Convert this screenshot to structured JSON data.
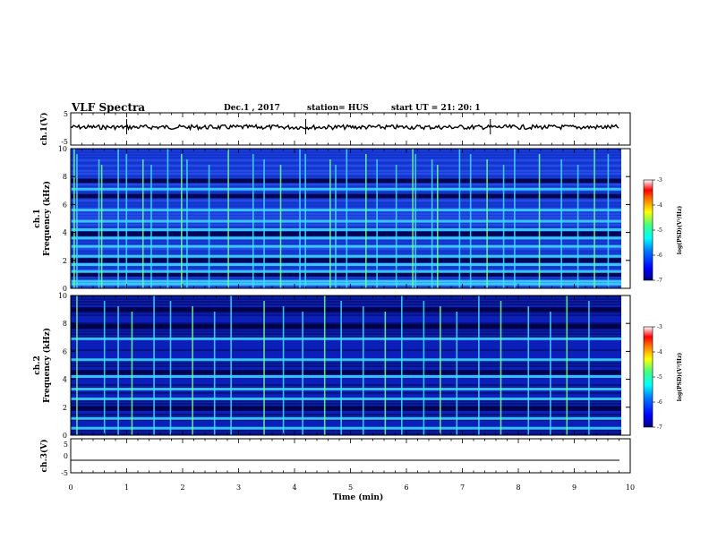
{
  "header": {
    "title": "VLF Spectra",
    "date": "Dec.1  , 2017",
    "station": "station= HUS",
    "start": "start  UT =   21: 20: 1"
  },
  "colors": {
    "colormap": [
      "#000080",
      "#0000ff",
      "#0080ff",
      "#00ffff",
      "#40ff80",
      "#ffff00",
      "#ff8000",
      "#ff0000",
      "#ffffff"
    ],
    "trace": "#000000",
    "axis": "#000000"
  },
  "chart_data": [
    {
      "type": "line",
      "panel": "ch1-waveform",
      "ylabel": "ch.1(V)",
      "ylim": [
        -5,
        5
      ],
      "yticks": [
        "5",
        "-5"
      ],
      "xlim": [
        0,
        10
      ],
      "note_values": {
        "baseline": 0,
        "spikes_at_min": [
          1.0,
          4.2,
          7.5
        ]
      }
    },
    {
      "type": "heatmap",
      "panel": "ch1-spectrogram",
      "ylabel": "ch.1\nFrequency (kHz)",
      "ylim": [
        0,
        10
      ],
      "yticks": [
        "0",
        "2",
        "4",
        "6",
        "8",
        "10"
      ],
      "xlim": [
        0,
        10
      ],
      "colorbar": {
        "label": "log(PSD)(V²/Hz)",
        "range": [
          -7,
          -3
        ],
        "ticks": [
          "-3",
          "-4",
          "-5",
          "-6",
          "-7"
        ]
      },
      "bright_bands_khz": [
        0.3,
        0.5,
        1.2,
        1.7,
        2.3,
        3.0,
        3.6,
        4.2,
        4.8,
        5.6,
        7.1
      ],
      "dark_bands_khz": [
        1.0,
        2.0,
        3.9,
        6.6,
        7.7
      ],
      "spike_times_min": [
        0.05,
        0.1,
        0.5,
        0.55,
        0.85,
        1.0,
        1.3,
        1.45,
        1.75,
        2.0,
        2.1,
        2.5,
        2.85,
        3.3,
        3.5,
        3.8,
        4.15,
        4.25,
        4.7,
        4.8,
        5.0,
        5.35,
        5.55,
        5.9,
        6.2,
        6.25,
        6.55,
        6.65,
        7.05,
        7.25,
        7.55,
        7.85,
        8.05,
        8.5,
        8.9,
        9.2,
        9.5,
        9.75
      ]
    },
    {
      "type": "heatmap",
      "panel": "ch2-spectrogram",
      "ylabel": "ch.2\nFrequency (kHz)",
      "ylim": [
        0,
        10
      ],
      "yticks": [
        "0",
        "2",
        "4",
        "6",
        "8",
        "10"
      ],
      "xlim": [
        0,
        10
      ],
      "colorbar": {
        "label": "log(PSD)(V²/Hz)",
        "range": [
          -7,
          -3
        ],
        "ticks": [
          "-3",
          "-4",
          "-5",
          "-6",
          "-7"
        ]
      },
      "bright_bands_khz": [
        0.5,
        1.2,
        2.6,
        3.3,
        4.2,
        5.4,
        6.9
      ],
      "dark_bands_khz": [
        1.9,
        4.5,
        7.8,
        9.0
      ],
      "spike_times_min": [
        0.1,
        0.6,
        0.85,
        1.1,
        1.5,
        1.8,
        2.2,
        2.6,
        2.9,
        3.5,
        3.85,
        4.2,
        4.6,
        4.9,
        5.3,
        5.7,
        6.0,
        6.4,
        6.7,
        7.0,
        7.4,
        7.8,
        8.3,
        8.7,
        9.0,
        9.4
      ]
    },
    {
      "type": "line",
      "panel": "ch3-waveform",
      "ylabel": "ch.3(V)",
      "ylim": [
        -5,
        5
      ],
      "yticks": [
        "5",
        "0",
        "-5"
      ],
      "xlim": [
        0,
        10
      ],
      "values": [
        -2,
        -2
      ]
    }
  ],
  "xaxis": {
    "label": "Time (min)",
    "ticks": [
      "0",
      "1",
      "2",
      "3",
      "4",
      "5",
      "6",
      "7",
      "8",
      "9",
      "10"
    ]
  }
}
